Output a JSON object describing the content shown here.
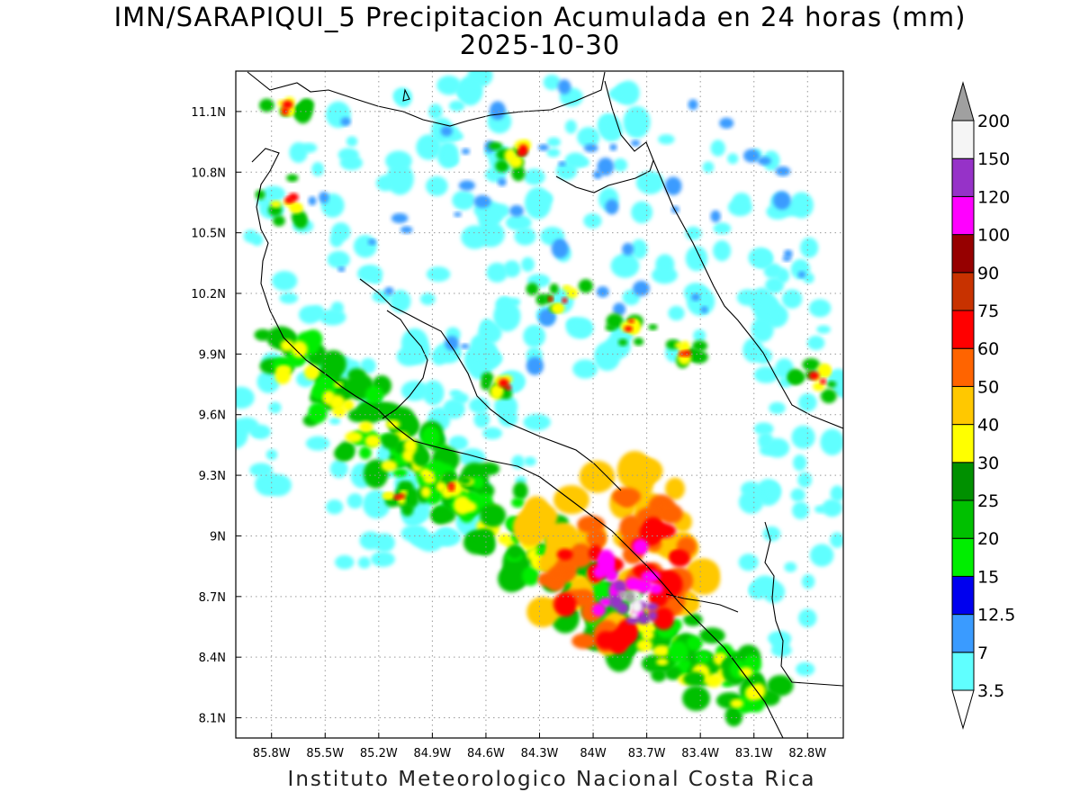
{
  "title": {
    "line1": "IMN/SARAPIQUI_5 Precipitacion Acumulada en 24 horas (mm)",
    "line2": "2025-10-30"
  },
  "credit": "Instituto Meteorologico Nacional Costa Rica",
  "map": {
    "lon_range": [
      -86.0,
      -82.6
    ],
    "lat_range": [
      8.0,
      11.3
    ],
    "lon_ticks": [
      {
        "value": -85.8,
        "label": "85.8W"
      },
      {
        "value": -85.5,
        "label": "85.5W"
      },
      {
        "value": -85.2,
        "label": "85.2W"
      },
      {
        "value": -84.9,
        "label": "84.9W"
      },
      {
        "value": -84.6,
        "label": "84.6W"
      },
      {
        "value": -84.3,
        "label": "84.3W"
      },
      {
        "value": -84.0,
        "label": "84W"
      },
      {
        "value": -83.7,
        "label": "83.7W"
      },
      {
        "value": -83.4,
        "label": "83.4W"
      },
      {
        "value": -83.1,
        "label": "83.1W"
      },
      {
        "value": -82.8,
        "label": "82.8W"
      }
    ],
    "lat_ticks": [
      {
        "value": 11.1,
        "label": "11.1N"
      },
      {
        "value": 10.8,
        "label": "10.8N"
      },
      {
        "value": 10.5,
        "label": "10.5N"
      },
      {
        "value": 10.2,
        "label": "10.2N"
      },
      {
        "value": 9.9,
        "label": "9.9N"
      },
      {
        "value": 9.6,
        "label": "9.6N"
      },
      {
        "value": 9.3,
        "label": "9.3N"
      },
      {
        "value": 9.0,
        "label": "9N"
      },
      {
        "value": 8.7,
        "label": "8.7N"
      },
      {
        "value": 8.4,
        "label": "8.4N"
      },
      {
        "value": 8.1,
        "label": "8.1N"
      }
    ],
    "grid": true,
    "units": "mm"
  },
  "colorbar": {
    "levels": [
      {
        "label": "3.5"
      },
      {
        "label": "7"
      },
      {
        "label": "12.5"
      },
      {
        "label": "15"
      },
      {
        "label": "20"
      },
      {
        "label": "25"
      },
      {
        "label": "30"
      },
      {
        "label": "40"
      },
      {
        "label": "50"
      },
      {
        "label": "60"
      },
      {
        "label": "75"
      },
      {
        "label": "90"
      },
      {
        "label": "100"
      },
      {
        "label": "120"
      },
      {
        "label": "150"
      },
      {
        "label": "200"
      }
    ],
    "colors": [
      "#60ffff",
      "#3a9bff",
      "#0000ee",
      "#00ee00",
      "#00c000",
      "#009000",
      "#ffff00",
      "#ffc800",
      "#ff6400",
      "#ff0000",
      "#c83200",
      "#960000",
      "#ff00ff",
      "#9632c8",
      "#f5f5f5",
      "#a0a0a0"
    ],
    "under_color": "#ffffff",
    "over_color": "#a0a0a0"
  }
}
